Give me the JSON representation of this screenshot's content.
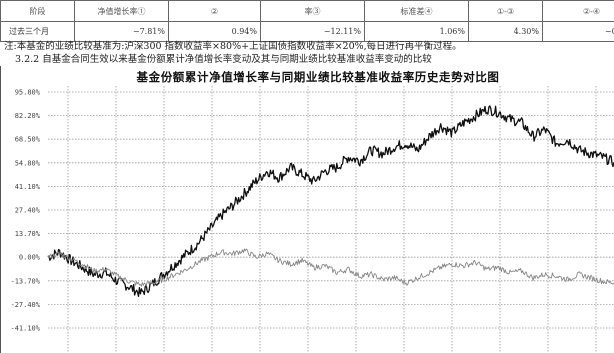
{
  "table": {
    "header": [
      "阶段",
      "净值增长率①",
      "②",
      "率③",
      "标准差④",
      "①-③",
      "②-④"
    ],
    "header_top": [
      "",
      "",
      "",
      "",
      "",
      "",
      ""
    ],
    "row": [
      "过去三个月",
      "−7.81%",
      "0.94%",
      "−12.11%",
      "1.06%",
      "4.30%",
      "−0.12%"
    ]
  },
  "note": "注:本基金的业绩比较基准为:沪深300 指数收益率×80%+上证国债指数收益率×20%,每日进行再平衡过程。",
  "section_heading": "3.2.2 自基金合同生效以来基金份额累计净值增长率变动及其与同期业绩比较基准收益率变动的比较",
  "chart_data": {
    "type": "line",
    "title": "基金份额累计净值增长率与同期业绩比较基准收益率历史走势对比图",
    "y_ticks": [
      "95.80%",
      "82.20%",
      "68.50%",
      "54.80%",
      "41.10%",
      "27.40%",
      "13.70%",
      "0.00%",
      "-13.70%",
      "-27.40%",
      "-41.10%"
    ],
    "ylim": [
      -41.1,
      95.8
    ],
    "grid": true,
    "series": [
      {
        "color": "#111111",
        "values": [
          0,
          3,
          -2,
          -6,
          -10,
          -9,
          -14,
          -17,
          -21,
          -16,
          -10,
          -4,
          2,
          8,
          16,
          24,
          30,
          37,
          44,
          50,
          46,
          52,
          48,
          44,
          50,
          52,
          58,
          56,
          62,
          60,
          64,
          66,
          62,
          70,
          76,
          72,
          78,
          82,
          86,
          84,
          80,
          78,
          70,
          74,
          66,
          68,
          62,
          60,
          58,
          55
        ]
      },
      {
        "color": "#888888",
        "values": [
          0,
          2,
          -1,
          -4,
          -8,
          -7,
          -11,
          -14,
          -16,
          -15,
          -13,
          -10,
          -7,
          -3,
          0,
          3,
          2,
          4,
          0,
          2,
          -2,
          -4,
          -2,
          -6,
          -5,
          -9,
          -7,
          -11,
          -10,
          -13,
          -12,
          -15,
          -12,
          -9,
          -6,
          -4,
          -5,
          -3,
          -7,
          -6,
          -9,
          -8,
          -12,
          -10,
          -11,
          -13,
          -10,
          -12,
          -14,
          -15
        ]
      }
    ]
  }
}
